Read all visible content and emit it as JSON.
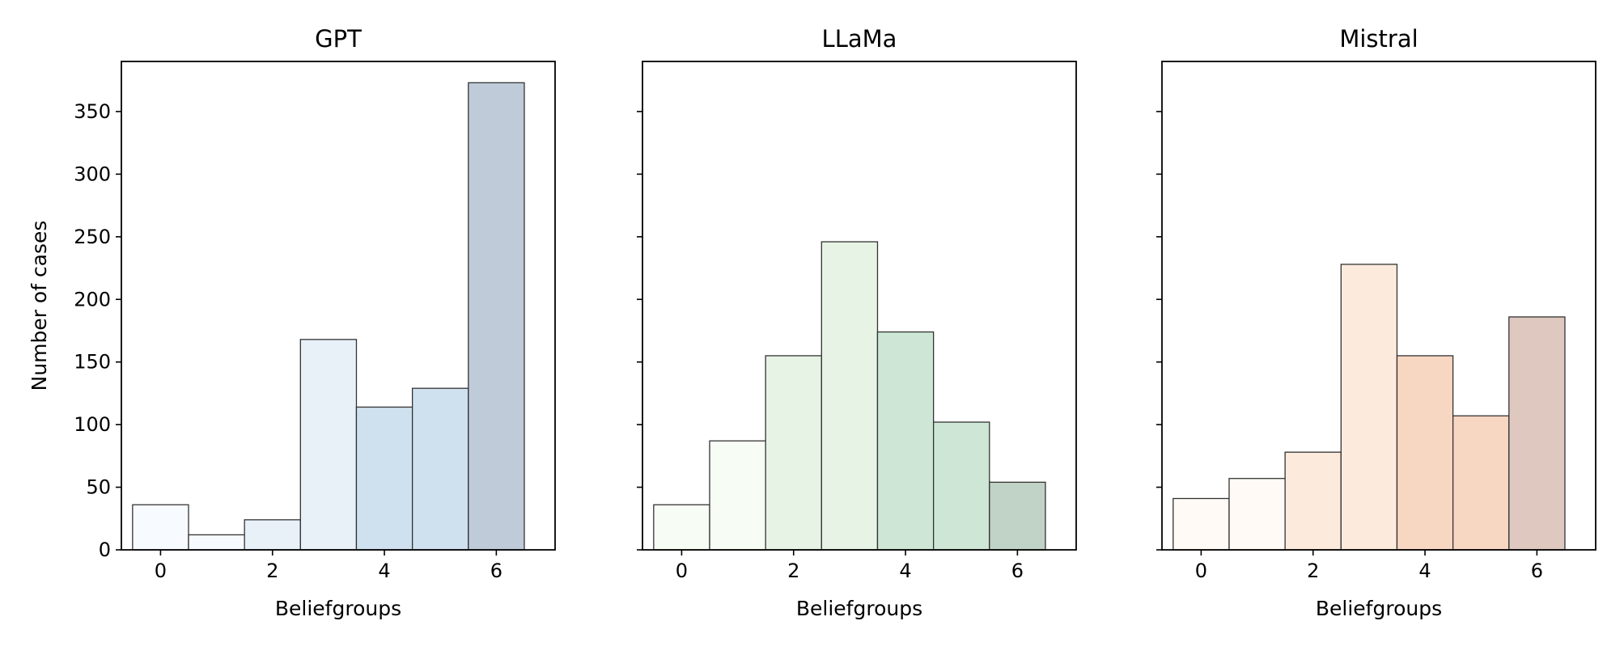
{
  "chart_data": [
    {
      "type": "bar",
      "title": "GPT",
      "xlabel": "Beliefgroups",
      "ylabel": "Number of cases",
      "categories": [
        0,
        1,
        2,
        3,
        4,
        5,
        6
      ],
      "values": [
        36,
        12,
        24,
        168,
        114,
        129,
        373
      ],
      "fill_colors": [
        "#f7fafe",
        "#f7fafe",
        "#e8f0f8",
        "#e8f0f8",
        "#cfe0ef",
        "#cfe0ef",
        "#c0cbda"
      ],
      "xlim": [
        -0.7,
        7.05
      ],
      "ylim": [
        0,
        390
      ],
      "xticks": [
        "0",
        "2",
        "4",
        "6"
      ],
      "yticks": [
        "0",
        "50",
        "100",
        "150",
        "200",
        "250",
        "300",
        "350"
      ]
    },
    {
      "type": "bar",
      "title": "LLaMa",
      "xlabel": "Beliefgroups",
      "ylabel": "",
      "categories": [
        0,
        1,
        2,
        3,
        4,
        5,
        6
      ],
      "values": [
        36,
        87,
        155,
        246,
        174,
        102,
        54
      ],
      "fill_colors": [
        "#f7fcf5",
        "#f7fcf5",
        "#e7f4e5",
        "#e7f4e5",
        "#cde6d5",
        "#cde6d5",
        "#c0d3c6"
      ],
      "xlim": [
        -0.7,
        7.05
      ],
      "ylim": [
        0,
        390
      ],
      "xticks": [
        "0",
        "2",
        "4",
        "6"
      ],
      "yticks": []
    },
    {
      "type": "bar",
      "title": "Mistral",
      "xlabel": "Beliefgroups",
      "ylabel": "",
      "categories": [
        0,
        1,
        2,
        3,
        4,
        5,
        6
      ],
      "values": [
        41,
        57,
        78,
        228,
        155,
        107,
        186
      ],
      "fill_colors": [
        "#fffaf6",
        "#fffaf6",
        "#fcebdd",
        "#fcebdd",
        "#f7d6c2",
        "#f7d6c2",
        "#dec8bf"
      ],
      "xlim": [
        -0.7,
        7.05
      ],
      "ylim": [
        0,
        390
      ],
      "xticks": [
        "0",
        "2",
        "4",
        "6"
      ],
      "yticks": []
    }
  ]
}
